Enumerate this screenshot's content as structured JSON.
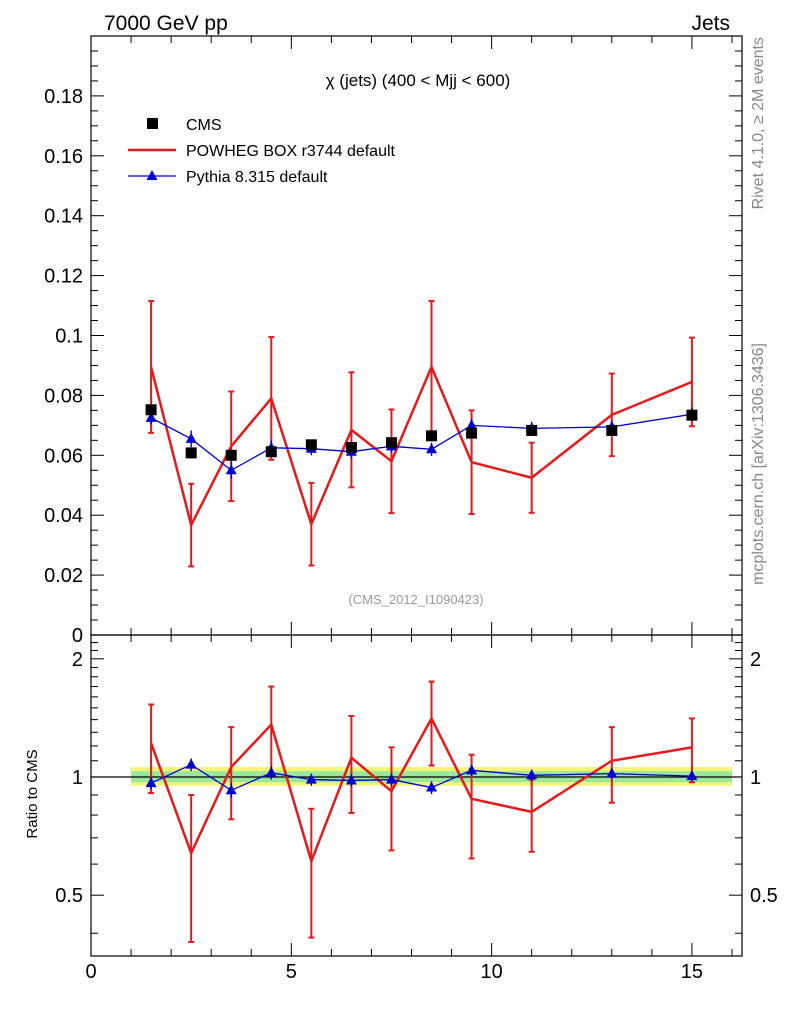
{
  "header": {
    "energy_label": "7000 GeV pp",
    "process_label": "Jets"
  },
  "side_labels": {
    "rivet": "Rivet 4.1.0, ≥ 2M events",
    "mcplots": "mcplots.cern.ch [arXiv:1306.3436]"
  },
  "colors": {
    "data": "#000000",
    "powheg": "#e41a1c",
    "pythia": "#0000cc",
    "band_outer": "#f5f57a",
    "band_inner": "#9be89b"
  },
  "chart_data": [
    {
      "type": "line",
      "panel": "main",
      "title": "χ (jets) (400 < Mjj <  600)",
      "watermark": "(CMS_2012_I1090423)",
      "xlabel": "",
      "ylabel": "",
      "xlim": [
        0,
        16.25
      ],
      "ylim": [
        0,
        0.2
      ],
      "x_ticks": [
        0,
        5,
        10,
        15
      ],
      "y_ticks": [
        0,
        0.02,
        0.04,
        0.06,
        0.08,
        0.1,
        0.12,
        0.14,
        0.16,
        0.18
      ],
      "y_tick_labels": [
        "0",
        "0.02",
        "0.04",
        "0.06",
        "0.08",
        "0.1",
        "0.12",
        "0.14",
        "0.16",
        "0.18"
      ],
      "legend": [
        {
          "label": "CMS",
          "marker": "square",
          "series": "CMS"
        },
        {
          "label": "POWHEG BOX r3744 default",
          "marker": "line",
          "series": "POWHEG"
        },
        {
          "label": "Pythia 8.315 default",
          "marker": "triangle",
          "series": "Pythia"
        }
      ],
      "series": [
        {
          "name": "CMS",
          "x": [
            1.5,
            2.5,
            3.5,
            4.5,
            5.5,
            6.5,
            7.5,
            8.5,
            9.5,
            11,
            13,
            15
          ],
          "y": [
            0.0752,
            0.0608,
            0.06,
            0.0612,
            0.0635,
            0.0626,
            0.0642,
            0.0665,
            0.0674,
            0.0683,
            0.0683,
            0.0734
          ],
          "err": [
            0.0015,
            0.0012,
            0.0012,
            0.0012,
            0.0012,
            0.0012,
            0.0012,
            0.0012,
            0.0012,
            0.0012,
            0.0012,
            0.0015
          ]
        },
        {
          "name": "POWHEG",
          "x": [
            1.5,
            2.5,
            3.5,
            4.5,
            5.5,
            6.5,
            7.5,
            8.5,
            9.5,
            11,
            13,
            15
          ],
          "y": [
            0.0895,
            0.0367,
            0.063,
            0.079,
            0.037,
            0.0685,
            0.058,
            0.0895,
            0.0577,
            0.0525,
            0.0735,
            0.0845
          ],
          "err": [
            0.022,
            0.0138,
            0.0183,
            0.0205,
            0.0138,
            0.0192,
            0.0173,
            0.022,
            0.0173,
            0.0117,
            0.0138,
            0.0148
          ]
        },
        {
          "name": "Pythia",
          "x": [
            1.5,
            2.5,
            3.5,
            4.5,
            5.5,
            6.5,
            7.5,
            8.5,
            9.5,
            11,
            13,
            15
          ],
          "y": [
            0.0725,
            0.0655,
            0.055,
            0.0625,
            0.0622,
            0.0612,
            0.063,
            0.062,
            0.07,
            0.069,
            0.0695,
            0.0737
          ],
          "err": [
            0.0022,
            0.0028,
            0.0028,
            0.0025,
            0.0022,
            0.0022,
            0.0022,
            0.0022,
            0.0022,
            0.0022,
            0.002,
            0.0022
          ]
        }
      ]
    },
    {
      "type": "line",
      "panel": "ratio",
      "ylabel": "Ratio to CMS",
      "xlim": [
        0,
        16.25
      ],
      "ylim": [
        0.35,
        2.3
      ],
      "y_scale": "log",
      "x_ticks": [
        0,
        5,
        10,
        15
      ],
      "x_tick_labels": [
        "0",
        "5",
        "10",
        "15"
      ],
      "y_ticks": [
        0.5,
        1,
        2
      ],
      "y_tick_labels": [
        "0.5",
        "1",
        "2"
      ],
      "reference_band": {
        "x_range": [
          1,
          16
        ],
        "outer": [
          0.95,
          1.06
        ],
        "inner": [
          0.97,
          1.035
        ]
      },
      "series": [
        {
          "name": "POWHEG",
          "x": [
            1.5,
            2.5,
            3.5,
            4.5,
            5.5,
            6.5,
            7.5,
            8.5,
            9.5,
            11,
            13,
            15
          ],
          "y": [
            1.22,
            0.64,
            1.06,
            1.36,
            0.61,
            1.12,
            0.92,
            1.41,
            0.88,
            0.815,
            1.1,
            1.19
          ],
          "err": [
            0.31,
            0.26,
            0.28,
            0.34,
            0.22,
            0.31,
            0.27,
            0.34,
            0.26,
            0.17,
            0.24,
            0.22
          ]
        },
        {
          "name": "Pythia",
          "x": [
            1.5,
            2.5,
            3.5,
            4.5,
            5.5,
            6.5,
            7.5,
            8.5,
            9.5,
            11,
            13,
            15
          ],
          "y": [
            0.965,
            1.075,
            0.925,
            1.025,
            0.985,
            0.98,
            0.985,
            0.94,
            1.04,
            1.01,
            1.02,
            1.005
          ],
          "err": [
            0.035,
            0.04,
            0.04,
            0.04,
            0.035,
            0.035,
            0.035,
            0.035,
            0.035,
            0.035,
            0.03,
            0.03
          ]
        }
      ]
    }
  ]
}
